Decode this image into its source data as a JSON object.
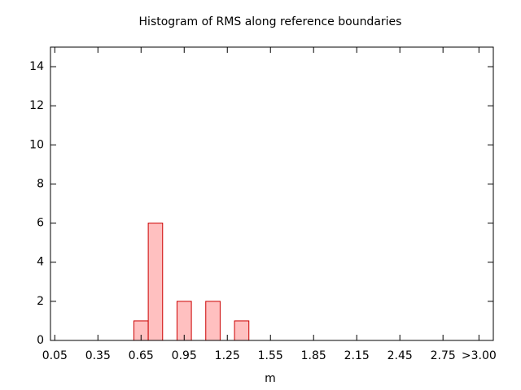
{
  "chart_data": {
    "type": "histogram",
    "title": "Histogram of RMS along reference boundaries",
    "x_label": "m",
    "bins": [
      0.6,
      0.7,
      0.8,
      0.9,
      1.0,
      1.1,
      1.2,
      1.3,
      1.4
    ],
    "values": [
      1,
      6,
      0,
      2,
      0,
      2,
      0,
      1
    ],
    "color": "#ffc0c0",
    "edge_color": "#cc0000",
    "xlim": [
      0.02,
      3.1
    ],
    "xticks": [
      0.05,
      0.35,
      0.65,
      0.95,
      1.25,
      1.55,
      1.85,
      2.15,
      2.45,
      2.75,
      {
        "value": 3.0,
        "label": ">3.00"
      }
    ],
    "ylim": [
      0,
      15
    ],
    "yticks": [
      0,
      2,
      4,
      6,
      8,
      10,
      12,
      14
    ]
  }
}
